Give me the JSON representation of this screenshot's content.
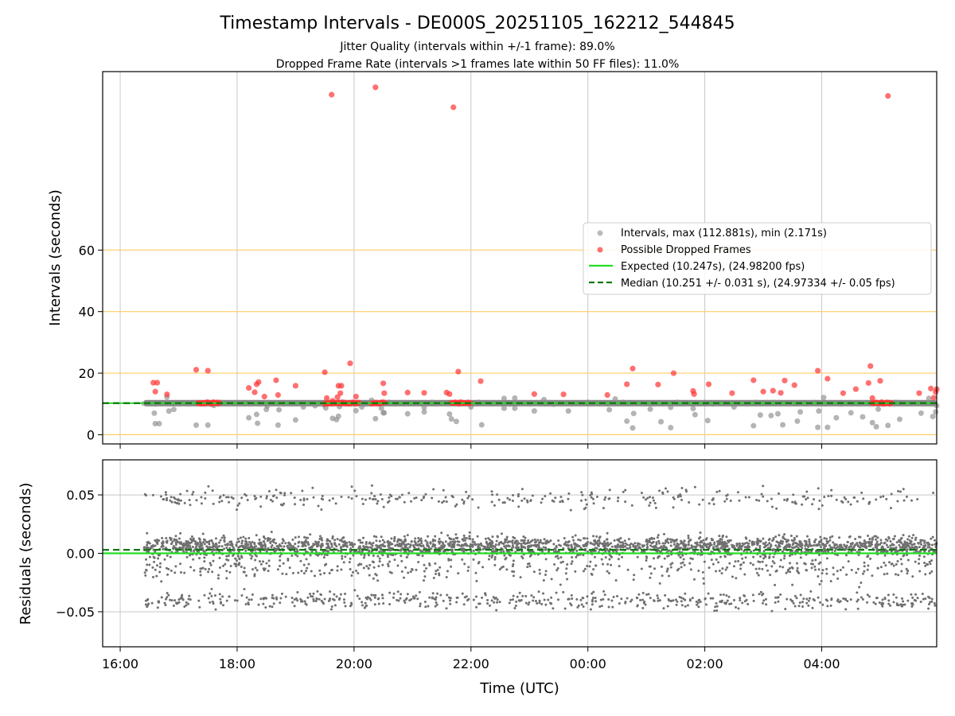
{
  "figure": {
    "title": "Timestamp Intervals - DE000S_20251105_162212_544845",
    "subtitle_line1": "Jitter Quality (intervals within +/-1 frame): 89.0%",
    "subtitle_line2": "Dropped Frame Rate (intervals >1 frames late within 50 FF files): 11.0%",
    "colors": {
      "intervals": "#8c8c8c",
      "dropped": "#ff3333",
      "expected": "#22dd22",
      "median": "#117711",
      "threshold": "#ffcc66",
      "residuals": "#707070",
      "grid": "#c8c8c8"
    }
  },
  "chart_data": [
    {
      "type": "scatter",
      "name": "intervals-panel",
      "ylabel": "Intervals (seconds)",
      "xlabel": "",
      "xlim": [
        "15:42",
        "05:58"
      ],
      "ylim": [
        -3,
        118
      ],
      "x_ticks": [
        "16:00",
        "18:00",
        "20:00",
        "22:00",
        "00:00",
        "02:00",
        "04:00"
      ],
      "y_ticks": [
        0,
        20,
        40,
        60
      ],
      "threshold_lines": [
        0,
        20,
        40,
        60
      ],
      "grid": "vertical",
      "legend_position": "center-right",
      "expected": 10.247,
      "median": 10.251,
      "series": [
        {
          "name": "Intervals, max (112.881s), min (2.171s)",
          "kind": "band",
          "x_range": [
            "16:24",
            "05:58"
          ],
          "value": 10.25,
          "points": [
            [
              "16:35",
              7.0
            ],
            [
              "16:36",
              3.6
            ],
            [
              "16:40",
              3.6
            ],
            [
              "16:48",
              12.2
            ],
            [
              "16:50",
              7.7
            ],
            [
              "16:55",
              8.2
            ],
            [
              "17:18",
              3.1
            ],
            [
              "17:30",
              3.1
            ],
            [
              "17:36",
              9.5
            ],
            [
              "18:12",
              5.5
            ],
            [
              "18:20",
              6.6
            ],
            [
              "18:21",
              3.7
            ],
            [
              "18:30",
              8.2
            ],
            [
              "18:31",
              9.3
            ],
            [
              "18:42",
              3.1
            ],
            [
              "18:43",
              8.1
            ],
            [
              "19:00",
              4.8
            ],
            [
              "19:08",
              9.0
            ],
            [
              "19:20",
              9.4
            ],
            [
              "19:29",
              9.7
            ],
            [
              "19:31",
              8.7
            ],
            [
              "19:38",
              5.3
            ],
            [
              "19:42",
              4.9
            ],
            [
              "19:44",
              6.0
            ],
            [
              "19:45",
              9.1
            ],
            [
              "20:02",
              7.8
            ],
            [
              "20:08",
              9.0
            ],
            [
              "20:18",
              11.2
            ],
            [
              "20:22",
              5.2
            ],
            [
              "20:28",
              8.6
            ],
            [
              "20:30",
              7.1
            ],
            [
              "20:31",
              7.1
            ],
            [
              "20:55",
              6.8
            ],
            [
              "21:12",
              7.4
            ],
            [
              "21:12",
              8.9
            ],
            [
              "21:38",
              6.7
            ],
            [
              "21:40",
              5.1
            ],
            [
              "21:45",
              4.3
            ],
            [
              "22:00",
              9.0
            ],
            [
              "22:11",
              3.2
            ],
            [
              "22:34",
              8.6
            ],
            [
              "22:34",
              11.8
            ],
            [
              "22:45",
              8.6
            ],
            [
              "22:45",
              11.9
            ],
            [
              "23:05",
              7.7
            ],
            [
              "23:15",
              11.4
            ],
            [
              "23:25",
              9.9
            ],
            [
              "23:40",
              7.7
            ],
            [
              "00:22",
              8.1
            ],
            [
              "00:28",
              11.6
            ],
            [
              "00:40",
              4.4
            ],
            [
              "00:46",
              2.2
            ],
            [
              "00:47",
              6.9
            ],
            [
              "01:04",
              8.3
            ],
            [
              "01:15",
              4.2
            ],
            [
              "01:25",
              2.3
            ],
            [
              "01:25",
              8.9
            ],
            [
              "01:32",
              10.5
            ],
            [
              "01:48",
              8.5
            ],
            [
              "01:50",
              6.5
            ],
            [
              "02:03",
              4.6
            ],
            [
              "02:30",
              9.0
            ],
            [
              "02:50",
              2.9
            ],
            [
              "02:57",
              6.4
            ],
            [
              "03:08",
              6.2
            ],
            [
              "03:15",
              6.8
            ],
            [
              "03:20",
              3.2
            ],
            [
              "03:35",
              4.4
            ],
            [
              "03:38",
              7.4
            ],
            [
              "03:56",
              2.4
            ],
            [
              "03:57",
              7.7
            ],
            [
              "04:02",
              12.1
            ],
            [
              "04:06",
              2.4
            ],
            [
              "04:15",
              5.5
            ],
            [
              "04:30",
              7.1
            ],
            [
              "04:42",
              5.8
            ],
            [
              "04:43",
              10.3
            ],
            [
              "04:52",
              3.9
            ],
            [
              "04:56",
              2.6
            ],
            [
              "04:58",
              8.3
            ],
            [
              "05:08",
              3.0
            ],
            [
              "05:20",
              5.0
            ],
            [
              "05:42",
              7.0
            ],
            [
              "05:50",
              11.8
            ],
            [
              "05:54",
              5.9
            ],
            [
              "05:57",
              7.4
            ],
            [
              "05:58",
              9.4
            ]
          ]
        },
        {
          "name": "Possible Dropped Frames",
          "points": [
            [
              "16:34",
              16.9
            ],
            [
              "16:36",
              14.0
            ],
            [
              "16:38",
              16.9
            ],
            [
              "16:48",
              13.1
            ],
            [
              "17:18",
              21.1
            ],
            [
              "17:30",
              20.8
            ],
            [
              "18:12",
              15.2
            ],
            [
              "18:18",
              13.8
            ],
            [
              "18:20",
              16.4
            ],
            [
              "18:22",
              17.1
            ],
            [
              "18:28",
              12.4
            ],
            [
              "18:40",
              17.7
            ],
            [
              "18:42",
              12.9
            ],
            [
              "19:00",
              15.9
            ],
            [
              "19:30",
              20.3
            ],
            [
              "19:32",
              11.9
            ],
            [
              "19:38",
              11.0
            ],
            [
              "19:43",
              12.2
            ],
            [
              "19:44",
              15.9
            ],
            [
              "19:46",
              13.5
            ],
            [
              "19:47",
              15.9
            ],
            [
              "19:56",
              23.2
            ],
            [
              "20:02",
              12.4
            ],
            [
              "20:30",
              16.7
            ],
            [
              "20:31",
              13.5
            ],
            [
              "20:55",
              13.7
            ],
            [
              "21:12",
              13.6
            ],
            [
              "21:35",
              13.7
            ],
            [
              "21:38",
              13.2
            ],
            [
              "21:47",
              20.5
            ],
            [
              "22:10",
              17.4
            ],
            [
              "23:05",
              13.2
            ],
            [
              "23:35",
              13.1
            ],
            [
              "00:20",
              12.9
            ],
            [
              "00:40",
              16.4
            ],
            [
              "00:46",
              21.5
            ],
            [
              "01:12",
              16.3
            ],
            [
              "01:28",
              20.0
            ],
            [
              "01:48",
              14.2
            ],
            [
              "01:49",
              13.2
            ],
            [
              "02:04",
              16.4
            ],
            [
              "02:28",
              13.5
            ],
            [
              "02:50",
              17.7
            ],
            [
              "03:00",
              14.0
            ],
            [
              "03:10",
              14.3
            ],
            [
              "03:18",
              13.6
            ],
            [
              "03:22",
              17.6
            ],
            [
              "03:32",
              16.1
            ],
            [
              "03:56",
              20.8
            ],
            [
              "04:06",
              18.2
            ],
            [
              "04:22",
              13.5
            ],
            [
              "04:35",
              14.8
            ],
            [
              "04:48",
              16.8
            ],
            [
              "04:50",
              22.3
            ],
            [
              "04:52",
              11.9
            ],
            [
              "05:00",
              17.5
            ],
            [
              "05:40",
              13.5
            ],
            [
              "05:52",
              15.0
            ],
            [
              "05:55",
              12.0
            ],
            [
              "05:57",
              13.9
            ],
            [
              "05:58",
              14.8
            ],
            [
              "19:37",
              110.5
            ],
            [
              "20:22",
              112.9
            ],
            [
              "21:42",
              106.4
            ],
            [
              "05:08",
              110.1
            ]
          ],
          "clusters": [
            [
              "17:20",
              "17:42"
            ],
            [
              "19:30",
              "20:05"
            ],
            [
              "20:18",
              "20:32"
            ],
            [
              "21:40",
              "22:00"
            ],
            [
              "04:52",
              "05:12"
            ]
          ],
          "cluster_value": 10.3
        },
        {
          "name": "Expected (10.247s), (24.98200 fps)",
          "kind": "hline",
          "value": 10.247
        },
        {
          "name": "Median (10.251 +/- 0.031 s), (24.97334 +/- 0.05 fps)",
          "kind": "hline-dashed",
          "value": 10.251
        }
      ]
    },
    {
      "type": "scatter",
      "name": "residuals-panel",
      "ylabel": "Residuals (seconds)",
      "xlabel": "Time (UTC)",
      "xlim": [
        "15:42",
        "05:58"
      ],
      "ylim": [
        -0.08,
        0.08
      ],
      "x_ticks": [
        "16:00",
        "18:00",
        "20:00",
        "22:00",
        "00:00",
        "02:00",
        "04:00"
      ],
      "y_ticks": [
        0.05,
        0.0,
        -0.05
      ],
      "y_tick_labels": [
        "0.05",
        "0.00",
        "−0.05"
      ],
      "grid": "both",
      "expected_line": 0.0,
      "median_line": 0.003,
      "series": [
        {
          "name": "Residuals",
          "x_range": [
            "16:24",
            "05:58"
          ],
          "count": 3600,
          "distribution": {
            "core": {
              "mean": 0.006,
              "spread": 0.006,
              "share": 0.62
            },
            "mid": {
              "mean": -0.012,
              "spread": 0.008,
              "share": 0.14
            },
            "low": {
              "mean": -0.04,
              "spread": 0.005,
              "share": 0.15
            },
            "high": {
              "mean": 0.047,
              "spread": 0.006,
              "share": 0.09
            }
          }
        }
      ]
    }
  ]
}
